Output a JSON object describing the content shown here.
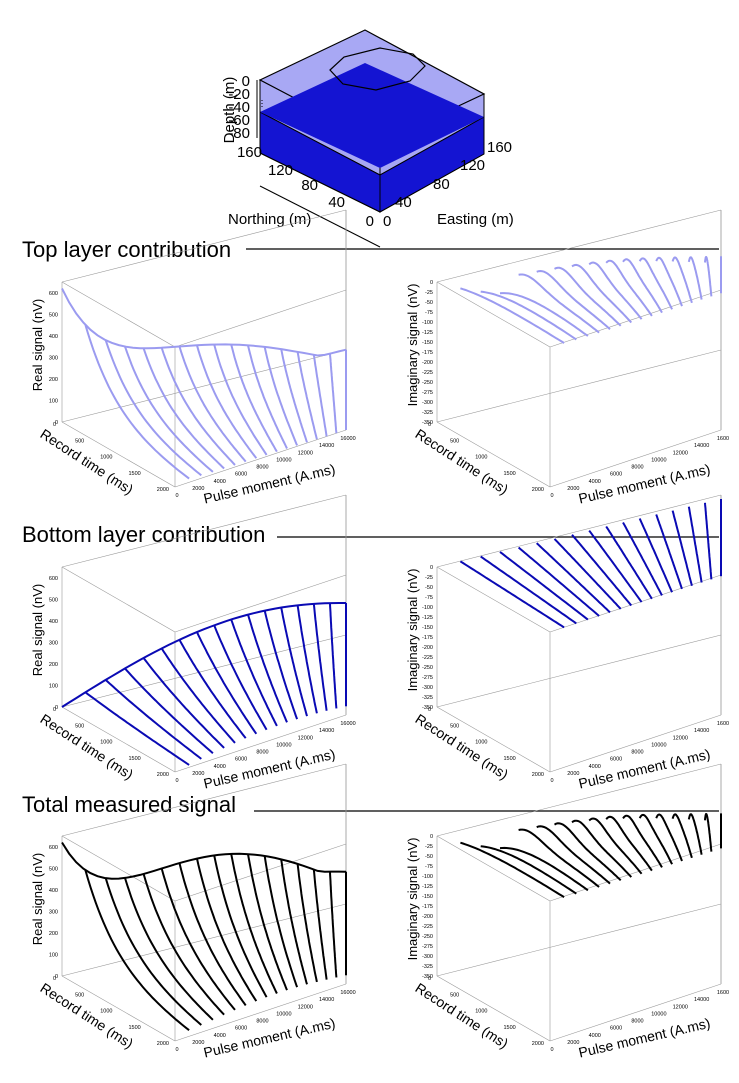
{
  "colors": {
    "top": "#9b9bf0",
    "bottom": "#0a0ab4",
    "total": "#000000",
    "top_face": "#a8a8f4",
    "bottom_face": "#1414d2",
    "axis": "#333333",
    "box": "#999999"
  },
  "model": {
    "depth_label": "Depth (m)",
    "depth_ticks": [
      "0",
      "-20",
      "-40",
      "-60",
      "-80"
    ],
    "northing_label": "Northing (m)",
    "northing_ticks": [
      "160",
      "120",
      "80",
      "40",
      "0"
    ],
    "easting_label": "Easting (m)",
    "easting_ticks": [
      "0",
      "40",
      "80",
      "120",
      "160"
    ]
  },
  "sections": [
    {
      "title": "Top layer contribution",
      "key": "top"
    },
    {
      "title": "Bottom layer contribution",
      "key": "bottom"
    },
    {
      "title": "Total measured signal",
      "key": "total"
    }
  ],
  "chart_data": [
    {
      "type": "line",
      "panel": "Top layer contribution - real",
      "zlabel": "Real signal (nV)",
      "xlabel": "Pulse moment (A.ms)",
      "ylabel": "Record time (ms)",
      "z_ticks": [
        "0",
        "100",
        "200",
        "300",
        "400",
        "500",
        "600"
      ],
      "q_ticks": [
        "0",
        "2000",
        "4000",
        "6000",
        "8000",
        "10000",
        "12000",
        "14000",
        "16000"
      ],
      "t_ticks": [
        "0",
        "500",
        "1000",
        "1500",
        "2000"
      ],
      "zlim": [
        0,
        650
      ],
      "series_count": 16,
      "peak_initial_amplitudes_nV": [
        620,
        250
      ],
      "pulse_moment_range": [
        0,
        16000
      ],
      "record_time_range": [
        0,
        2000
      ]
    },
    {
      "type": "line",
      "panel": "Top layer contribution - imaginary",
      "zlabel": "Imaginary signal (nV)",
      "xlabel": "Pulse moment (A.ms)",
      "ylabel": "Record time (ms)",
      "z_ticks": [
        "0",
        "-25",
        "-50",
        "-75",
        "-100",
        "-125",
        "-150",
        "-175",
        "-200",
        "-225",
        "-250",
        "-275",
        "-300",
        "-325",
        "-350"
      ],
      "q_ticks": [
        "0",
        "2000",
        "4000",
        "6000",
        "8000",
        "10000",
        "12000",
        "14000",
        "1600"
      ],
      "t_ticks": [
        "0",
        "500",
        "1000",
        "1500",
        "2000"
      ],
      "zlim": [
        -350,
        0
      ],
      "series_count": 16
    },
    {
      "type": "line",
      "panel": "Bottom layer contribution - real",
      "zlabel": "Real signal (nV)",
      "xlabel": "Pulse moment (A.ms)",
      "ylabel": "Record time (ms)",
      "z_ticks": [
        "0",
        "100",
        "200",
        "300",
        "400",
        "500",
        "600"
      ],
      "q_ticks": [
        "0",
        "2000",
        "4000",
        "6000",
        "8000",
        "10000",
        "12000",
        "14000",
        "16000"
      ],
      "t_ticks": [
        "0",
        "500",
        "1000",
        "1500",
        "2000"
      ],
      "zlim": [
        0,
        650
      ],
      "series_count": 16
    },
    {
      "type": "line",
      "panel": "Bottom layer contribution - imaginary",
      "zlabel": "Imaginary signal (nV)",
      "xlabel": "Pulse moment (A.ms)",
      "ylabel": "Record time (ms)",
      "z_ticks": [
        "0",
        "-25",
        "-50",
        "-75",
        "-100",
        "-125",
        "-150",
        "-175",
        "-200",
        "-225",
        "-250",
        "-275",
        "-300",
        "-325",
        "-350"
      ],
      "q_ticks": [
        "0",
        "2000",
        "4000",
        "6000",
        "8000",
        "10000",
        "12000",
        "14000",
        "1600"
      ],
      "t_ticks": [
        "0",
        "500",
        "1000",
        "1500",
        "2000"
      ],
      "zlim": [
        -350,
        0
      ],
      "series_count": 16
    },
    {
      "type": "line",
      "panel": "Total measured signal - real",
      "zlabel": "Real signal (nV)",
      "xlabel": "Pulse moment (A.ms)",
      "ylabel": "Record time (ms)",
      "z_ticks": [
        "0",
        "100",
        "200",
        "300",
        "400",
        "500",
        "600"
      ],
      "q_ticks": [
        "0",
        "2000",
        "4000",
        "6000",
        "8000",
        "10000",
        "12000",
        "14000",
        "16000"
      ],
      "t_ticks": [
        "0",
        "500",
        "1000",
        "1500",
        "2000"
      ],
      "zlim": [
        0,
        650
      ],
      "series_count": 16
    },
    {
      "type": "line",
      "panel": "Total measured signal - imaginary",
      "zlabel": "Imaginary signal (nV)",
      "xlabel": "Pulse moment (A.ms)",
      "ylabel": "Record time (ms)",
      "z_ticks": [
        "0",
        "-25",
        "-50",
        "-75",
        "-100",
        "-125",
        "-150",
        "-175",
        "-200",
        "-225",
        "-250",
        "-275",
        "-300",
        "-325",
        "-350"
      ],
      "q_ticks": [
        "0",
        "2000",
        "4000",
        "6000",
        "8000",
        "10000",
        "12000",
        "14000",
        "1600"
      ],
      "t_ticks": [
        "0",
        "500",
        "1000",
        "1500",
        "2000"
      ],
      "zlim": [
        -350,
        0
      ],
      "series_count": 16
    }
  ]
}
